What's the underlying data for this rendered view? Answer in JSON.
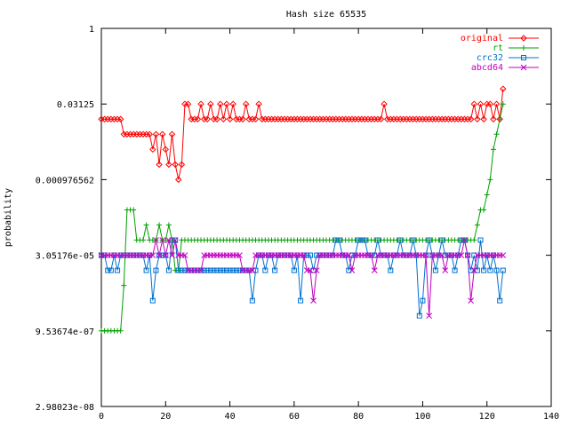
{
  "chart_data": {
    "type": "line",
    "title": "Hash size 65535",
    "xlabel": "",
    "ylabel": "probability",
    "xlim": [
      0,
      140
    ],
    "x_ticks": [
      0,
      20,
      40,
      60,
      80,
      100,
      120,
      140
    ],
    "x_tick_labels": [
      "0",
      "20",
      "40",
      "60",
      "80",
      "100",
      "120",
      "140"
    ],
    "y_scale": "log2",
    "ylim": [
      2.98023e-08,
      1
    ],
    "y_ticks": [
      2.98023e-08,
      9.53674e-07,
      3.05176e-05,
      0.000976562,
      0.03125,
      1
    ],
    "y_tick_labels": [
      "2.98023e-08",
      "9.53674e-07",
      "3.05176e-05",
      "0.000976562",
      "0.03125",
      "1"
    ],
    "grid": false,
    "legend_position": "top-right",
    "series": [
      {
        "name": "original",
        "color": "#ff0000",
        "marker": "diamond",
        "values": [
          -6,
          -6,
          -6,
          -6,
          -6,
          -6,
          -6,
          -7,
          -7,
          -7,
          -7,
          -7,
          -7,
          -7,
          -7,
          -7,
          -8,
          -7,
          -9,
          -7,
          -8,
          -9,
          -7,
          -9,
          -10,
          -9,
          -5,
          -5,
          -6,
          -6,
          -6,
          -5,
          -6,
          -6,
          -5,
          -6,
          -6,
          -5,
          -6,
          -5,
          -6,
          -5,
          -6,
          -6,
          -6,
          -5,
          -6,
          -6,
          -6,
          -5,
          -6,
          -6,
          -6,
          -6,
          -6,
          -6,
          -6,
          -6,
          -6,
          -6,
          -6,
          -6,
          -6,
          -6,
          -6,
          -6,
          -6,
          -6,
          -6,
          -6,
          -6,
          -6,
          -6,
          -6,
          -6,
          -6,
          -6,
          -6,
          -6,
          -6,
          -6,
          -6,
          -6,
          -6,
          -6,
          -6,
          -6,
          -6,
          -5,
          -6,
          -6,
          -6,
          -6,
          -6,
          -6,
          -6,
          -6,
          -6,
          -6,
          -6,
          -6,
          -6,
          -6,
          -6,
          -6,
          -6,
          -6,
          -6,
          -6,
          -6,
          -6,
          -6,
          -6,
          -6,
          -6,
          -6,
          -5,
          -6,
          -5,
          -6,
          -5,
          -5,
          -6,
          -5,
          -6,
          -4
        ]
      },
      {
        "name": "rt",
        "color": "#00a000",
        "marker": "plus",
        "values": [
          -20,
          -20,
          -20,
          -20,
          -20,
          -20,
          -20,
          -17,
          -12,
          -12,
          -12,
          -14,
          -14,
          -14,
          -13,
          -14,
          -14,
          -14,
          -13,
          -14,
          -14,
          -13,
          -14,
          -16,
          -16,
          -14,
          -14,
          -14,
          -14,
          -14,
          -14,
          -14,
          -14,
          -14,
          -14,
          -14,
          -14,
          -14,
          -14,
          -14,
          -14,
          -14,
          -14,
          -14,
          -14,
          -14,
          -14,
          -14,
          -14,
          -14,
          -14,
          -14,
          -14,
          -14,
          -14,
          -14,
          -14,
          -14,
          -14,
          -14,
          -14,
          -14,
          -14,
          -14,
          -14,
          -14,
          -14,
          -14,
          -14,
          -14,
          -14,
          -14,
          -14,
          -14,
          -14,
          -14,
          -14,
          -14,
          -14,
          -14,
          -14,
          -14,
          -14,
          -14,
          -14,
          -14,
          -14,
          -14,
          -14,
          -14,
          -14,
          -14,
          -14,
          -14,
          -14,
          -14,
          -14,
          -14,
          -14,
          -14,
          -14,
          -14,
          -14,
          -14,
          -14,
          -14,
          -14,
          -14,
          -14,
          -14,
          -14,
          -14,
          -14,
          -14,
          -14,
          -14,
          -14,
          -13,
          -12,
          -12,
          -11,
          -10,
          -8,
          -7,
          -6,
          -5
        ]
      },
      {
        "name": "crc32",
        "color": "#0070d0",
        "marker": "square",
        "values": [
          -15,
          -15,
          -16,
          -16,
          -15,
          -16,
          -15,
          -15,
          -15,
          -15,
          -15,
          -15,
          -15,
          -15,
          -16,
          -15,
          -18,
          -16,
          -15,
          -15,
          -15,
          -16,
          -14,
          -14,
          -16,
          -16,
          -16,
          -16,
          -16,
          -16,
          -16,
          -16,
          -16,
          -16,
          -16,
          -16,
          -16,
          -16,
          -16,
          -16,
          -16,
          -16,
          -16,
          -16,
          -16,
          -16,
          -16,
          -18,
          -16,
          -15,
          -15,
          -16,
          -15,
          -15,
          -16,
          -15,
          -15,
          -15,
          -15,
          -15,
          -16,
          -15,
          -18,
          -15,
          -15,
          -15,
          -16,
          -15,
          -15,
          -15,
          -15,
          -15,
          -15,
          -14,
          -14,
          -15,
          -15,
          -16,
          -15,
          -15,
          -14,
          -14,
          -14,
          -15,
          -15,
          -15,
          -14,
          -15,
          -15,
          -15,
          -16,
          -15,
          -15,
          -14,
          -15,
          -15,
          -15,
          -14,
          -15,
          -19,
          -18,
          -15,
          -14,
          -15,
          -16,
          -15,
          -14,
          -15,
          -15,
          -15,
          -16,
          -15,
          -14,
          -14,
          -15,
          -16,
          -15,
          -16,
          -14,
          -16,
          -15,
          -16,
          -15,
          -16,
          -18,
          -16
        ]
      },
      {
        "name": "abcd64",
        "color": "#c000c0",
        "marker": "cross",
        "values": [
          -15,
          -15,
          -15,
          -15,
          -15,
          -15,
          -15,
          -15,
          -15,
          -15,
          -15,
          -15,
          -15,
          -15,
          -15,
          -15,
          -15,
          -14,
          -15,
          -14,
          -15,
          -14,
          -15,
          -14,
          -15,
          -15,
          -15,
          -16,
          -16,
          -16,
          -16,
          -16,
          -15,
          -15,
          -15,
          -15,
          -15,
          -15,
          -15,
          -15,
          -15,
          -15,
          -15,
          -15,
          -16,
          -16,
          -16,
          -16,
          -15,
          -15,
          -15,
          -15,
          -15,
          -15,
          -15,
          -15,
          -15,
          -15,
          -15,
          -15,
          -15,
          -15,
          -15,
          -15,
          -16,
          -16,
          -18,
          -16,
          -15,
          -15,
          -15,
          -15,
          -15,
          -15,
          -15,
          -15,
          -15,
          -15,
          -16,
          -15,
          -15,
          -15,
          -15,
          -15,
          -15,
          -16,
          -15,
          -15,
          -15,
          -15,
          -15,
          -15,
          -15,
          -15,
          -15,
          -15,
          -15,
          -15,
          -15,
          -15,
          -15,
          -15,
          -19,
          -15,
          -15,
          -15,
          -15,
          -16,
          -15,
          -15,
          -15,
          -15,
          -15,
          -14,
          -15,
          -18,
          -16,
          -15,
          -15,
          -15,
          -15,
          -15,
          -15,
          -15,
          -15,
          -15
        ]
      }
    ]
  }
}
